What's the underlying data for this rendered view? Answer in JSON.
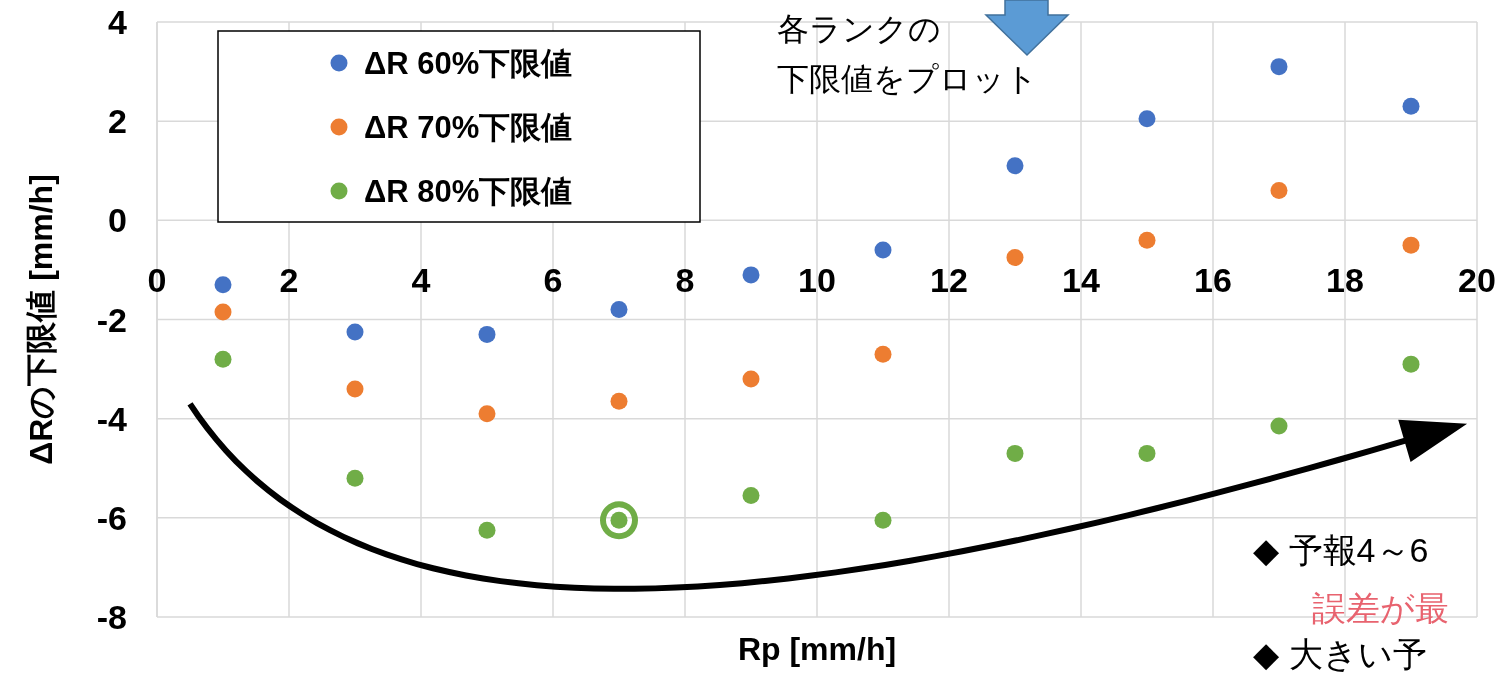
{
  "chart_data": {
    "type": "scatter",
    "xlabel": "Rp [mm/h]",
    "ylabel": "ΔRの下限値 [mm/h]",
    "x": [
      1,
      3,
      5,
      7,
      9,
      11,
      13,
      15,
      17,
      19
    ],
    "series": [
      {
        "name": "ΔR 60%下限値",
        "color": "#4472c4",
        "values": [
          -1.3,
          -2.25,
          -2.3,
          -1.8,
          -1.1,
          -0.6,
          1.1,
          2.05,
          3.1,
          2.3
        ]
      },
      {
        "name": "ΔR 70%下限値",
        "color": "#ed7d31",
        "values": [
          -1.85,
          -3.4,
          -3.9,
          -3.65,
          -3.2,
          -2.7,
          -0.75,
          -0.4,
          0.6,
          -0.5
        ]
      },
      {
        "name": "ΔR 80%下限値",
        "color": "#70ad47",
        "values": [
          -2.8,
          -5.2,
          -6.25,
          -6.05,
          -5.55,
          -6.05,
          -4.7,
          -4.7,
          -4.15,
          -2.9
        ]
      }
    ],
    "xlim": [
      0,
      20
    ],
    "ylim": [
      -8,
      4
    ],
    "xticks": [
      0,
      2,
      4,
      6,
      8,
      10,
      12,
      14,
      16,
      18,
      20
    ],
    "yticks": [
      -8,
      -6,
      -4,
      -2,
      0,
      2,
      4
    ],
    "grid": true,
    "legend": "top left",
    "marker": "circle",
    "annotations": [
      "各ランクの",
      "下限値をプロット",
      "◆ 予報4～6",
      "誤差が最",
      "◆ 大きい予"
    ]
  }
}
